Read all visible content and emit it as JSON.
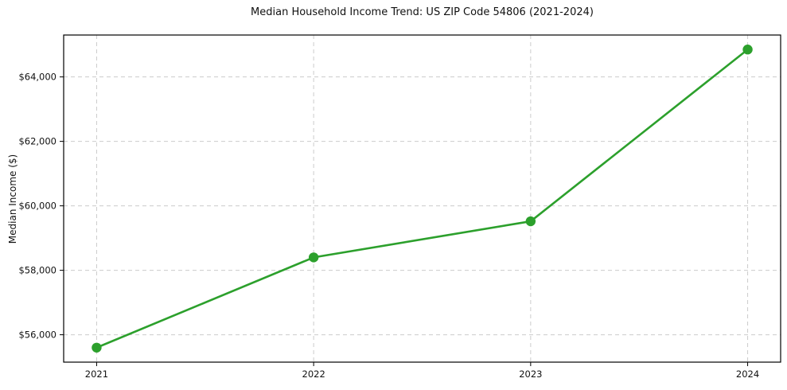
{
  "chart_data": {
    "type": "line",
    "title": "Median Household Income Trend: US ZIP Code 54806 (2021-2024)",
    "xlabel": "",
    "ylabel": "Median Income ($)",
    "categories": [
      "2021",
      "2022",
      "2023",
      "2024"
    ],
    "series": [
      {
        "name": "Median Household Income",
        "values": [
          55600,
          58400,
          59520,
          64850
        ]
      }
    ],
    "ylim": [
      55150,
      65300
    ],
    "yticks": [
      56000,
      58000,
      60000,
      62000,
      64000
    ],
    "ytick_labels": [
      "$56,000",
      "$58,000",
      "$60,000",
      "$62,000",
      "$64,000"
    ],
    "grid": true,
    "grid_style": "dashed",
    "legend_position": "none",
    "colors": {
      "line": "#2ca02c",
      "marker": "#2ca02c",
      "grid": "#cccccc",
      "spine": "#000000",
      "text": "#111111",
      "background": "#ffffff"
    }
  }
}
